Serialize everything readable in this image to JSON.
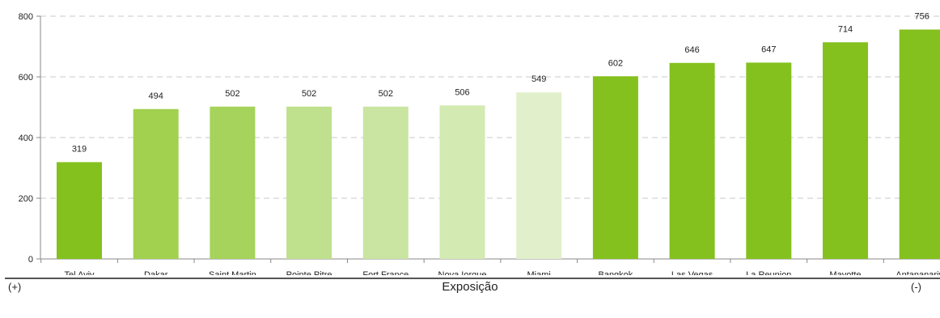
{
  "chart_data": {
    "type": "bar",
    "categories": [
      "Tel Aviv",
      "Dakar",
      "Saint Martin",
      "Pointe Pitre",
      "Fort France",
      "Nova Iorque",
      "Miami",
      "Bangkok",
      "Las Vegas",
      "La Reunion",
      "Mayotte",
      "Antananarivo"
    ],
    "values": [
      319,
      494,
      502,
      502,
      502,
      506,
      549,
      602,
      646,
      647,
      714,
      756
    ],
    "bar_colors": [
      "#84c11e",
      "#a2d14f",
      "#a6d35b",
      "#bfe08d",
      "#c9e5a1",
      "#d3eab3",
      "#e1f0cb",
      "#84c11e",
      "#84c11e",
      "#84c11e",
      "#84c11e",
      "#84c11e"
    ],
    "ylim": [
      0,
      800
    ],
    "yticks": [
      0,
      200,
      400,
      600,
      800
    ],
    "grid": true,
    "xlabel": "Exposição",
    "left_marker": "(+)",
    "right_marker": "(-)"
  }
}
